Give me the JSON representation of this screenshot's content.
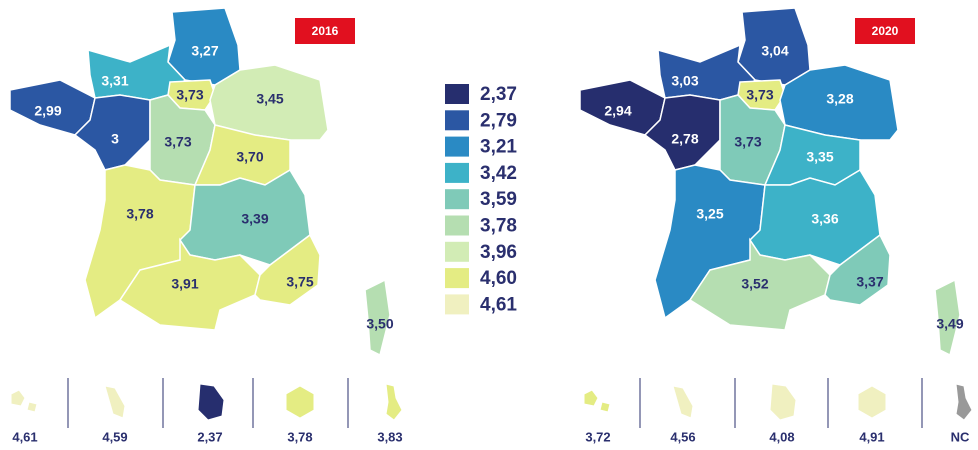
{
  "maps": [
    {
      "year": "2016",
      "regions": [
        {
          "label": "3,27",
          "color": "#2a8ac4"
        },
        {
          "label": "3,31",
          "color": "#3db2c8"
        },
        {
          "label": "3,73",
          "color": "#e4ec83"
        },
        {
          "label": "3,45",
          "color": "#d2ecb5"
        },
        {
          "label": "2,99",
          "color": "#2b57a3"
        },
        {
          "label": "3",
          "color": "#2b57a3"
        },
        {
          "label": "3,73",
          "color": "#b5deb1"
        },
        {
          "label": "3,70",
          "color": "#e4ec83"
        },
        {
          "label": "3,78",
          "color": "#e4ec83"
        },
        {
          "label": "3,39",
          "color": "#7fcab8"
        },
        {
          "label": "3,91",
          "color": "#e4ec83"
        },
        {
          "label": "3,75",
          "color": "#e4ec83"
        },
        {
          "label": "3,50",
          "color": "#b5deb1"
        }
      ],
      "overseas": [
        {
          "label": "4,61",
          "color": "#f0f0c0"
        },
        {
          "label": "4,59",
          "color": "#f0f0c0"
        },
        {
          "label": "2,37",
          "color": "#262e6e"
        },
        {
          "label": "3,78",
          "color": "#e4ec83"
        },
        {
          "label": "3,83",
          "color": "#e4ec83"
        }
      ]
    },
    {
      "year": "2020",
      "regions": [
        {
          "label": "3,04",
          "color": "#2b57a3"
        },
        {
          "label": "3,03",
          "color": "#2b57a3"
        },
        {
          "label": "3,73",
          "color": "#e4ec83"
        },
        {
          "label": "3,28",
          "color": "#2a8ac4"
        },
        {
          "label": "2,94",
          "color": "#262e6e"
        },
        {
          "label": "2,78",
          "color": "#262e6e"
        },
        {
          "label": "3,73",
          "color": "#7fcab8"
        },
        {
          "label": "3,35",
          "color": "#3db2c8"
        },
        {
          "label": "3,25",
          "color": "#2a8ac4"
        },
        {
          "label": "3,36",
          "color": "#3db2c8"
        },
        {
          "label": "3,52",
          "color": "#b5deb1"
        },
        {
          "label": "3,37",
          "color": "#7fcab8"
        },
        {
          "label": "3,49",
          "color": "#b5deb1"
        }
      ],
      "overseas": [
        {
          "label": "3,72",
          "color": "#e4ec83"
        },
        {
          "label": "4,56",
          "color": "#f0f0c0"
        },
        {
          "label": "4,08",
          "color": "#f0f0c0"
        },
        {
          "label": "4,91",
          "color": "#f0f0c0"
        },
        {
          "label": "NC",
          "color": "#999999"
        }
      ]
    }
  ],
  "legend": [
    {
      "label": "2,37",
      "color": "#262e6e"
    },
    {
      "label": "2,79",
      "color": "#2b57a3"
    },
    {
      "label": "3,21",
      "color": "#2a8ac4"
    },
    {
      "label": "3,42",
      "color": "#3db2c8"
    },
    {
      "label": "3,59",
      "color": "#7fcab8"
    },
    {
      "label": "3,78",
      "color": "#b5deb1"
    },
    {
      "label": "3,96",
      "color": "#d2ecb5"
    },
    {
      "label": "4,60",
      "color": "#e4ec83"
    },
    {
      "label": "4,61",
      "color": "#f0f0c0"
    }
  ]
}
